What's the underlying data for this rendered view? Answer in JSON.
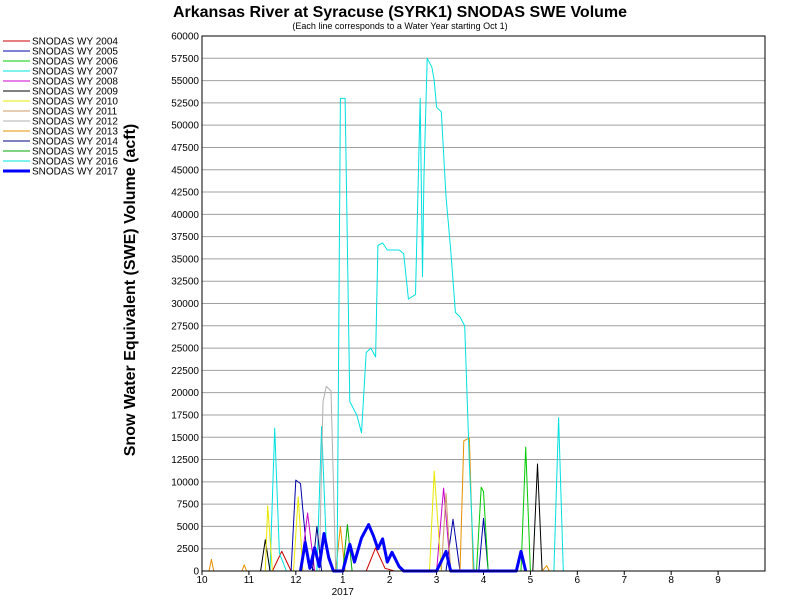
{
  "chart_data": {
    "type": "line",
    "title": "Arkansas River at Syracuse (SYRK1) SNODAS SWE Volume",
    "subtitle": "(Each line corresponds to a Water Year starting Oct 1)",
    "ylabel": "Snow Water Equivalent (SWE) Volume (acft)",
    "xlabel": "",
    "ylim": [
      0,
      60000
    ],
    "yticks": [
      0,
      2500,
      5000,
      7500,
      10000,
      12500,
      15000,
      17500,
      20000,
      22500,
      25000,
      27500,
      30000,
      32500,
      35000,
      37500,
      40000,
      42500,
      45000,
      47500,
      50000,
      52500,
      55000,
      57500,
      60000
    ],
    "x_month_labels": [
      "10",
      "11",
      "12",
      "1",
      "2",
      "3",
      "4",
      "5",
      "6",
      "7",
      "8",
      "9"
    ],
    "x_year_label": "2017",
    "grid": "horizontal",
    "legend_position": "left",
    "series": [
      {
        "name": "SNODAS WY 2004",
        "color": "#cc0000",
        "points": [
          [
            1.5,
            0
          ],
          [
            1.7,
            2200
          ],
          [
            1.9,
            0
          ],
          [
            3.5,
            0
          ],
          [
            3.7,
            2600
          ],
          [
            3.9,
            300
          ],
          [
            4.1,
            0
          ]
        ]
      },
      {
        "name": "SNODAS WY 2005",
        "color": "#0000aa",
        "points": [
          [
            1.9,
            0
          ],
          [
            2.0,
            10200
          ],
          [
            2.1,
            9800
          ],
          [
            2.25,
            1000
          ],
          [
            2.4,
            0
          ],
          [
            5.2,
            0
          ],
          [
            5.35,
            5800
          ],
          [
            5.5,
            0
          ],
          [
            5.9,
            0
          ],
          [
            6.0,
            5900
          ],
          [
            6.1,
            0
          ]
        ]
      },
      {
        "name": "SNODAS WY 2006",
        "color": "#00cc00",
        "points": [
          [
            5.85,
            0
          ],
          [
            5.95,
            9400
          ],
          [
            6.0,
            8900
          ],
          [
            6.1,
            0
          ],
          [
            6.8,
            0
          ],
          [
            6.9,
            13900
          ],
          [
            7.0,
            0
          ]
        ]
      },
      {
        "name": "SNODAS WY 2007",
        "color": "#00e0e0",
        "points": [
          [
            1.45,
            0
          ],
          [
            1.55,
            16000
          ],
          [
            1.65,
            2000
          ],
          [
            1.8,
            0
          ],
          [
            2.45,
            0
          ],
          [
            2.55,
            16200
          ],
          [
            2.65,
            3000
          ],
          [
            2.8,
            0
          ],
          [
            7.5,
            0
          ],
          [
            7.6,
            17200
          ],
          [
            7.7,
            0
          ]
        ]
      },
      {
        "name": "SNODAS WY 2008",
        "color": "#cc00cc",
        "points": [
          [
            2.1,
            0
          ],
          [
            2.25,
            6500
          ],
          [
            2.4,
            0
          ],
          [
            5.0,
            0
          ],
          [
            5.15,
            9300
          ],
          [
            5.3,
            0
          ]
        ]
      },
      {
        "name": "SNODAS WY 2009",
        "color": "#000000",
        "points": [
          [
            1.25,
            0
          ],
          [
            1.35,
            3500
          ],
          [
            1.45,
            0
          ],
          [
            7.05,
            0
          ],
          [
            7.15,
            12000
          ],
          [
            7.25,
            0
          ]
        ]
      },
      {
        "name": "SNODAS WY 2010",
        "color": "#e8e800",
        "points": [
          [
            1.35,
            0
          ],
          [
            1.4,
            7300
          ],
          [
            1.5,
            0
          ],
          [
            1.95,
            0
          ],
          [
            2.05,
            8300
          ],
          [
            2.15,
            0
          ],
          [
            4.85,
            0
          ],
          [
            4.95,
            11200
          ],
          [
            5.1,
            0
          ]
        ]
      },
      {
        "name": "SNODAS WY 2011",
        "color": "#cc9966",
        "points": [
          [
            5.1,
            0
          ],
          [
            5.2,
            8700
          ],
          [
            5.3,
            0
          ]
        ]
      },
      {
        "name": "SNODAS WY 2012",
        "color": "#b0b0b0",
        "points": [
          [
            2.5,
            0
          ],
          [
            2.58,
            19000
          ],
          [
            2.65,
            20700
          ],
          [
            2.75,
            20200
          ],
          [
            2.85,
            0
          ]
        ]
      },
      {
        "name": "SNODAS WY 2013",
        "color": "#e89000",
        "points": [
          [
            0.15,
            0
          ],
          [
            0.2,
            1300
          ],
          [
            0.25,
            0
          ],
          [
            0.85,
            0
          ],
          [
            0.9,
            700
          ],
          [
            0.95,
            0
          ],
          [
            2.85,
            0
          ],
          [
            2.95,
            5000
          ],
          [
            3.05,
            0
          ],
          [
            5.5,
            0
          ],
          [
            5.58,
            14600
          ],
          [
            5.7,
            14900
          ],
          [
            5.78,
            0
          ],
          [
            7.25,
            0
          ],
          [
            7.35,
            600
          ],
          [
            7.4,
            0
          ]
        ]
      },
      {
        "name": "SNODAS WY 2014",
        "color": "#000080",
        "points": [
          [
            2.35,
            0
          ],
          [
            2.45,
            5000
          ],
          [
            2.55,
            0
          ]
        ]
      },
      {
        "name": "SNODAS WY 2015",
        "color": "#00aa00",
        "points": [
          [
            3.0,
            0
          ],
          [
            3.1,
            5200
          ],
          [
            3.2,
            0
          ]
        ]
      },
      {
        "name": "SNODAS WY 2016",
        "color": "#00e0e0",
        "points": [
          [
            2.88,
            0
          ],
          [
            2.95,
            53000
          ],
          [
            3.05,
            53000
          ],
          [
            3.15,
            19000
          ],
          [
            3.3,
            17500
          ],
          [
            3.4,
            15500
          ],
          [
            3.5,
            24500
          ],
          [
            3.6,
            25000
          ],
          [
            3.7,
            24000
          ],
          [
            3.75,
            36500
          ],
          [
            3.85,
            36800
          ],
          [
            3.95,
            36000
          ],
          [
            4.2,
            36000
          ],
          [
            4.3,
            35600
          ],
          [
            4.4,
            30500
          ],
          [
            4.55,
            31000
          ],
          [
            4.65,
            53000
          ],
          [
            4.7,
            33000
          ],
          [
            4.73,
            44000
          ],
          [
            4.8,
            57500
          ],
          [
            4.9,
            56500
          ],
          [
            4.95,
            55000
          ],
          [
            5.0,
            52000
          ],
          [
            5.1,
            51500
          ],
          [
            5.2,
            42000
          ],
          [
            5.3,
            36000
          ],
          [
            5.4,
            29000
          ],
          [
            5.5,
            28500
          ],
          [
            5.6,
            27500
          ],
          [
            5.7,
            12000
          ],
          [
            5.8,
            0
          ]
        ]
      },
      {
        "name": "SNODAS WY 2017",
        "color": "#0000ff",
        "points": [
          [
            2.1,
            0
          ],
          [
            2.2,
            3200
          ],
          [
            2.3,
            300
          ],
          [
            2.4,
            2600
          ],
          [
            2.5,
            500
          ],
          [
            2.6,
            4200
          ],
          [
            2.7,
            1500
          ],
          [
            2.8,
            0
          ],
          [
            3.0,
            0
          ],
          [
            3.15,
            3000
          ],
          [
            3.25,
            1000
          ],
          [
            3.4,
            3700
          ],
          [
            3.55,
            5200
          ],
          [
            3.65,
            4000
          ],
          [
            3.75,
            2500
          ],
          [
            3.85,
            3600
          ],
          [
            3.95,
            1000
          ],
          [
            4.05,
            2100
          ],
          [
            4.2,
            500
          ],
          [
            4.3,
            0
          ],
          [
            5.0,
            0
          ],
          [
            5.2,
            2200
          ],
          [
            5.3,
            0
          ],
          [
            6.7,
            0
          ],
          [
            6.8,
            2200
          ],
          [
            6.9,
            0
          ]
        ]
      }
    ]
  }
}
